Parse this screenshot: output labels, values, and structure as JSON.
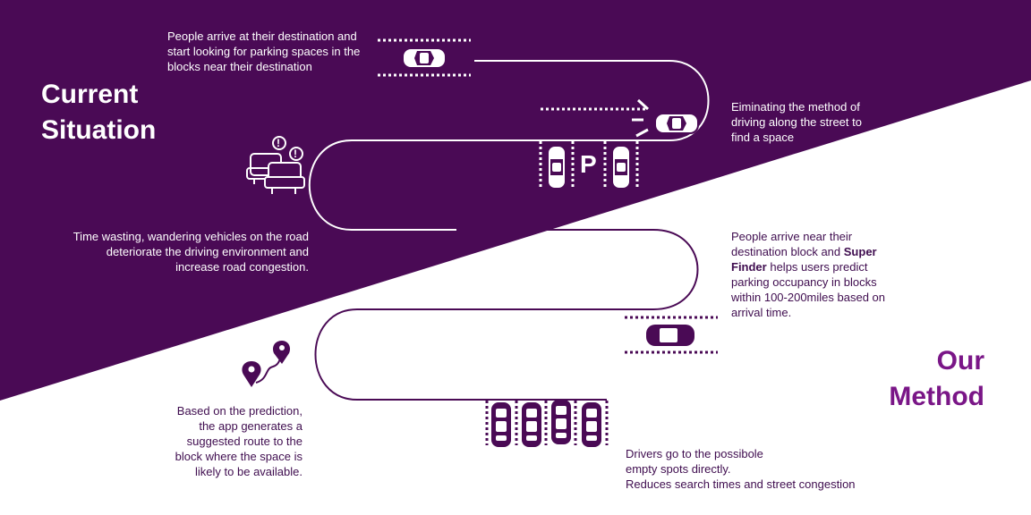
{
  "colors": {
    "purple": "#4a0a55",
    "method_purple": "#7a1687",
    "text_dark": "#3f0d4f",
    "white": "#ffffff"
  },
  "headings": {
    "current_line1": "Current",
    "current_line2": "Situation",
    "method_line1": "Our",
    "method_line2": "Method"
  },
  "steps": {
    "arrive": "People arrive at their destination and start looking for parking spaces in the blocks near their destination",
    "wasting": "Time wasting, wandering vehicles on the road deteriorate the driving environment and increase road congestion.",
    "eliminating": "Eiminating the method of driving along the street to find a space",
    "near_pre": "People arrive near their destination block and ",
    "near_bold": "Super Finder",
    "near_post": " helps users predict parking occupancy in blocks within 100-200miles based on arrival time.",
    "prediction": "Based on the prediction, the app generates a suggested route to the block where the space is likely to be available.",
    "drivers_1": "Drivers go to the possibole empty spots directly.",
    "drivers_2": "Reduces search times and street congestion"
  },
  "parking_sign": "P",
  "alert_mark": "!",
  "icons": [
    "car-icon",
    "traffic-jam-icon",
    "alert-icon",
    "parking-sign-icon",
    "location-pin-icon",
    "route-icon"
  ]
}
